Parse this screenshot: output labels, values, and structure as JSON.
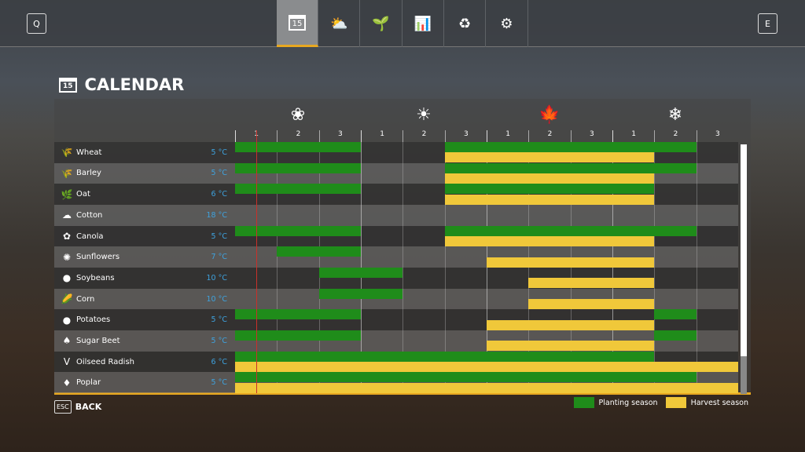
{
  "topbar": {
    "left_key": "Q",
    "right_key": "E",
    "tabs": [
      {
        "icon": "calendar-icon",
        "glyph": "15",
        "active": true
      },
      {
        "icon": "weather-icon",
        "glyph": "⛅"
      },
      {
        "icon": "sprout-icon",
        "glyph": "🌱"
      },
      {
        "icon": "stats-icon",
        "glyph": "📊"
      },
      {
        "icon": "cycle-icon",
        "glyph": "♻"
      },
      {
        "icon": "settings-icon",
        "glyph": "⚙"
      }
    ]
  },
  "page": {
    "title": "CALENDAR",
    "calendar_icon_text": "15"
  },
  "seasons": [
    {
      "name": "spring",
      "glyph": "❀"
    },
    {
      "name": "summer",
      "glyph": "☀"
    },
    {
      "name": "autumn",
      "glyph": "🍁"
    },
    {
      "name": "winter",
      "glyph": "❄"
    }
  ],
  "periods": [
    "1",
    "2",
    "3",
    "1",
    "2",
    "3",
    "1",
    "2",
    "3",
    "1",
    "2",
    "3"
  ],
  "current_period": 0.5,
  "crops": [
    {
      "name": "Wheat",
      "temp": "5 °C",
      "glyph": "🌾",
      "planting": [
        [
          0,
          3
        ],
        [
          5,
          11
        ]
      ],
      "harvest": [
        [
          5,
          10
        ]
      ]
    },
    {
      "name": "Barley",
      "temp": "5 °C",
      "glyph": "🌾",
      "planting": [
        [
          0,
          3
        ],
        [
          5,
          11
        ]
      ],
      "harvest": [
        [
          5,
          10
        ]
      ]
    },
    {
      "name": "Oat",
      "temp": "6 °C",
      "glyph": "🌿",
      "planting": [
        [
          0,
          3
        ],
        [
          5,
          10
        ]
      ],
      "harvest": [
        [
          5,
          10
        ]
      ]
    },
    {
      "name": "Cotton",
      "temp": "18 °C",
      "glyph": "☁",
      "planting": [],
      "harvest": []
    },
    {
      "name": "Canola",
      "temp": "5 °C",
      "glyph": "✿",
      "planting": [
        [
          0,
          3
        ],
        [
          5,
          11
        ]
      ],
      "harvest": [
        [
          5,
          10
        ]
      ]
    },
    {
      "name": "Sunflowers",
      "temp": "7 °C",
      "glyph": "✺",
      "planting": [
        [
          1,
          3
        ]
      ],
      "harvest": [
        [
          6,
          10
        ]
      ]
    },
    {
      "name": "Soybeans",
      "temp": "10 °C",
      "glyph": "●",
      "planting": [
        [
          2,
          4
        ]
      ],
      "harvest": [
        [
          7,
          10
        ]
      ]
    },
    {
      "name": "Corn",
      "temp": "10 °C",
      "glyph": "🌽",
      "planting": [
        [
          2,
          4
        ]
      ],
      "harvest": [
        [
          7,
          10
        ]
      ]
    },
    {
      "name": "Potatoes",
      "temp": "5 °C",
      "glyph": "●",
      "planting": [
        [
          0,
          3
        ],
        [
          10,
          11
        ]
      ],
      "harvest": [
        [
          6,
          10
        ]
      ]
    },
    {
      "name": "Sugar Beet",
      "temp": "5 °C",
      "glyph": "♠",
      "planting": [
        [
          0,
          3
        ],
        [
          10,
          11
        ]
      ],
      "harvest": [
        [
          6,
          10
        ]
      ]
    },
    {
      "name": "Oilseed Radish",
      "temp": "6 °C",
      "glyph": "V",
      "planting": [
        [
          0,
          10
        ]
      ],
      "harvest": [
        [
          0,
          12
        ]
      ]
    },
    {
      "name": "Poplar",
      "temp": "5 °C",
      "glyph": "♦",
      "planting": [
        [
          0,
          11
        ]
      ],
      "harvest": [
        [
          0,
          12
        ]
      ]
    }
  ],
  "legend": {
    "planting": "Planting season",
    "harvest": "Harvest season"
  },
  "colors": {
    "planting": "#1f8c1a",
    "harvest": "#f0c83a",
    "accent": "#e8a820",
    "temperature": "#3ea2de",
    "current": "#c8302a"
  },
  "footer": {
    "esc_key": "ESC",
    "back_label": "BACK"
  }
}
